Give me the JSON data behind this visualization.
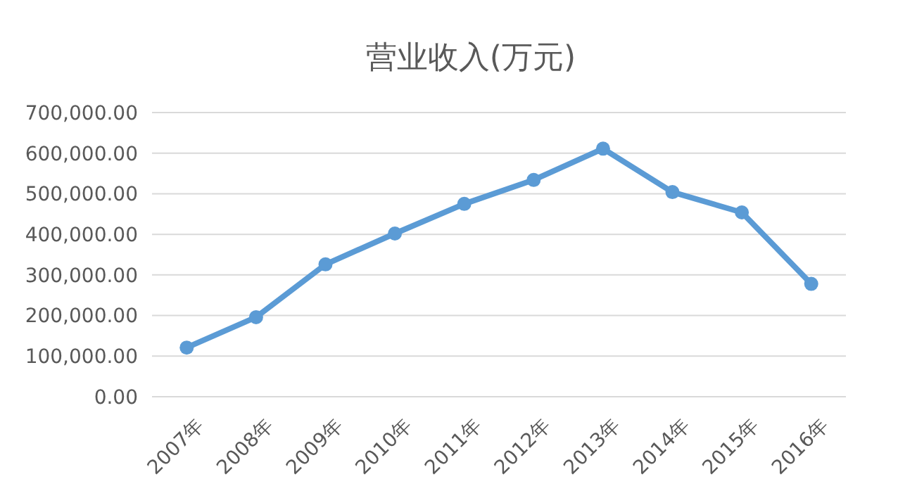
{
  "chart_data": {
    "type": "line",
    "title": "营业收入(万元)",
    "categories": [
      "2007年",
      "2008年",
      "2009年",
      "2010年",
      "2011年",
      "2012年",
      "2013年",
      "2014年",
      "2015年",
      "2016年"
    ],
    "series": [
      {
        "color": "#5b9bd5",
        "values": [
          121000,
          196000,
          326000,
          402000,
          475000,
          534000,
          611000,
          504000,
          454000,
          278000
        ]
      }
    ],
    "ylim": [
      0,
      700000
    ],
    "yticks": [
      {
        "value": 0,
        "label": "0.00"
      },
      {
        "value": 100000,
        "label": "100,000.00"
      },
      {
        "value": 200000,
        "label": "200,000.00"
      },
      {
        "value": 300000,
        "label": "300,000.00"
      },
      {
        "value": 400000,
        "label": "400,000.00"
      },
      {
        "value": 500000,
        "label": "500,000.00"
      },
      {
        "value": 600000,
        "label": "600,000.00"
      },
      {
        "value": 700000,
        "label": "700,000.00"
      }
    ],
    "grid": "y",
    "marker": "circle"
  }
}
